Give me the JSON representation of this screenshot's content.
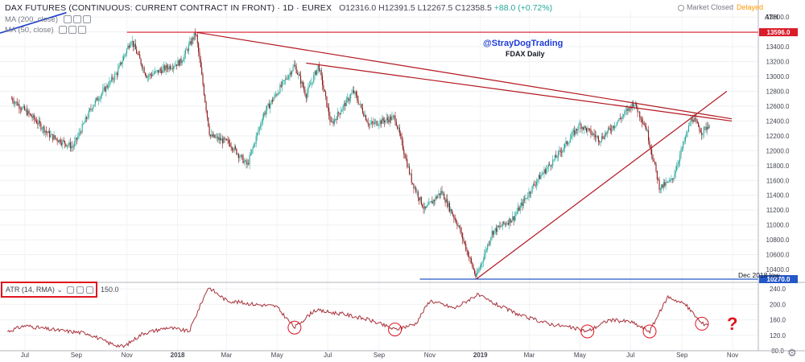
{
  "header": {
    "symbol_title": "DAX FUTURES (CONTINUOUS: CURRENT CONTRACT IN FRONT) · 1D · EUREX",
    "ohlc": "O12316.0  H12391.5  L12267.5  C12358.5",
    "change": "+88.0 (+0.72%)"
  },
  "indicators": {
    "ma200": "MA (200, close)",
    "ma50": "MA (50, close)"
  },
  "market_status": {
    "text": "Market Closed",
    "delayed": "Delayed"
  },
  "annotations": {
    "watermark": "@StrayDogTrading",
    "subtitle": "FDAX Daily",
    "ath_label": "ATH",
    "dec_low_label": "Dec 2018 low",
    "question_mark": "?"
  },
  "atr": {
    "label": "ATR (14, RMA)",
    "value": "150.0"
  },
  "icons": {
    "settings": "gear-icon",
    "market_dot": "circle-icon"
  },
  "colors": {
    "up": "#26a69a",
    "down": "#8b1a1a",
    "trendline": "#b2161d",
    "ath_line": "#d91b2a",
    "low_line": "#2458c8",
    "atr_line": "#a8323a",
    "ma_line": "#1c3fd0"
  },
  "chart_data": [
    {
      "type": "candlestick",
      "title": "DAX FUTURES (CONTINUOUS: CURRENT CONTRACT IN FRONT)",
      "price_axis_ticks": [
        "13800.0",
        "13600.0",
        "13400.0",
        "13200.0",
        "13000.0",
        "12800.0",
        "12600.0",
        "12400.0",
        "12200.0",
        "12000.0",
        "11800.0",
        "11600.0",
        "11400.0",
        "11200.0",
        "11000.0",
        "10800.0",
        "10600.0",
        "10400.0"
      ],
      "ylim": [
        10270,
        13900
      ],
      "levels": [
        {
          "name": "ATH",
          "value": 13596.0,
          "label": "13596.0"
        },
        {
          "name": "Dec 2018 low",
          "value": 10270.0,
          "label": "10270.0"
        }
      ],
      "x_tick_labels": [
        "Jul",
        "Sep",
        "Nov",
        "2018",
        "Mar",
        "May",
        "Jul",
        "Sep",
        "Nov",
        "2019",
        "Mar",
        "May",
        "Jul",
        "Sep",
        "Nov"
      ],
      "close_path": [
        [
          "2017-06-15",
          12700
        ],
        [
          "2017-07-10",
          12450
        ],
        [
          "2017-08-01",
          12200
        ],
        [
          "2017-08-28",
          12050
        ],
        [
          "2017-09-20",
          12600
        ],
        [
          "2017-10-20",
          13050
        ],
        [
          "2017-11-06",
          13500
        ],
        [
          "2017-11-25",
          13000
        ],
        [
          "2017-12-15",
          13100
        ],
        [
          "2018-01-05",
          13200
        ],
        [
          "2018-01-23",
          13590
        ],
        [
          "2018-02-09",
          12200
        ],
        [
          "2018-03-05",
          12100
        ],
        [
          "2018-03-26",
          11800
        ],
        [
          "2018-04-15",
          12500
        ],
        [
          "2018-05-22",
          13150
        ],
        [
          "2018-06-05",
          12750
        ],
        [
          "2018-06-20",
          13150
        ],
        [
          "2018-07-05",
          12350
        ],
        [
          "2018-08-01",
          12800
        ],
        [
          "2018-08-20",
          12350
        ],
        [
          "2018-09-20",
          12450
        ],
        [
          "2018-10-10",
          11600
        ],
        [
          "2018-10-26",
          11200
        ],
        [
          "2018-11-15",
          11450
        ],
        [
          "2018-12-05",
          11000
        ],
        [
          "2018-12-27",
          10290
        ],
        [
          "2019-01-15",
          10900
        ],
        [
          "2019-02-10",
          11100
        ],
        [
          "2019-03-10",
          11600
        ],
        [
          "2019-04-05",
          11950
        ],
        [
          "2019-05-01",
          12350
        ],
        [
          "2019-05-25",
          12150
        ],
        [
          "2019-06-20",
          12450
        ],
        [
          "2019-07-05",
          12650
        ],
        [
          "2019-07-20",
          12300
        ],
        [
          "2019-08-05",
          11500
        ],
        [
          "2019-08-20",
          11600
        ],
        [
          "2019-09-13",
          12450
        ],
        [
          "2019-09-25",
          12250
        ],
        [
          "2019-10-04",
          12358.5
        ]
      ],
      "trendlines": [
        {
          "from": [
            "2018-01-23",
            13596
          ],
          "to": [
            "2019-10-31",
            12430
          ]
        },
        {
          "from": [
            "2018-06-05",
            13180
          ],
          "to": [
            "2019-10-31",
            12400
          ]
        },
        {
          "from": [
            "2018-12-27",
            10270
          ],
          "to": [
            "2019-10-25",
            12800
          ]
        }
      ],
      "moving_average": [
        [
          "2017-06-01",
          13780
        ],
        [
          "2017-06-25",
          13600
        ]
      ]
    },
    {
      "type": "line",
      "title": "ATR (14, RMA)",
      "y_tick_labels": [
        "240.0",
        "200.0",
        "160.0",
        "120.0",
        "80.0"
      ],
      "ylim": [
        80,
        255
      ],
      "values": [
        [
          "2017-06-10",
          130
        ],
        [
          "2017-07-01",
          145
        ],
        [
          "2017-08-01",
          135
        ],
        [
          "2017-09-15",
          125
        ],
        [
          "2017-10-10",
          100
        ],
        [
          "2017-10-28",
          90
        ],
        [
          "2017-11-20",
          125
        ],
        [
          "2017-12-20",
          140
        ],
        [
          "2018-01-15",
          130
        ],
        [
          "2018-02-07",
          245
        ],
        [
          "2018-03-01",
          210
        ],
        [
          "2018-04-05",
          200
        ],
        [
          "2018-04-30",
          195
        ],
        [
          "2018-05-22",
          140
        ],
        [
          "2018-06-15",
          185
        ],
        [
          "2018-07-20",
          175
        ],
        [
          "2018-08-20",
          160
        ],
        [
          "2018-09-20",
          135
        ],
        [
          "2018-10-15",
          150
        ],
        [
          "2018-11-01",
          210
        ],
        [
          "2018-12-01",
          190
        ],
        [
          "2018-12-28",
          225
        ],
        [
          "2019-01-20",
          200
        ],
        [
          "2019-02-20",
          170
        ],
        [
          "2019-03-25",
          150
        ],
        [
          "2019-04-20",
          140
        ],
        [
          "2019-05-10",
          130
        ],
        [
          "2019-06-05",
          160
        ],
        [
          "2019-07-01",
          155
        ],
        [
          "2019-07-24",
          130
        ],
        [
          "2019-08-15",
          220
        ],
        [
          "2019-09-05",
          200
        ],
        [
          "2019-09-25",
          150
        ],
        [
          "2019-10-04",
          150
        ]
      ],
      "highlighted_lows": [
        "2018-05-22",
        "2018-09-20",
        "2019-05-10",
        "2019-07-24",
        "2019-09-25"
      ]
    }
  ]
}
